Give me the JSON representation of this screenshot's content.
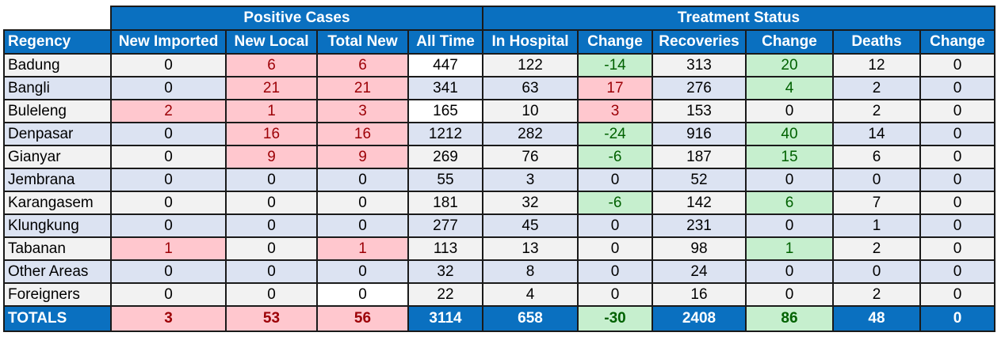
{
  "groups": {
    "positive": "Positive Cases",
    "treatment": "Treatment Status"
  },
  "columns": [
    "Regency",
    "New Imported",
    "New Local",
    "Total New",
    "All Time",
    "In Hospital",
    "Change",
    "Recoveries",
    "Change",
    "Deaths",
    "Change"
  ],
  "rows": [
    [
      "Badung",
      "0",
      "6",
      "6",
      "447",
      "122",
      "-14",
      "313",
      "20",
      "12",
      "0"
    ],
    [
      "Bangli",
      "0",
      "21",
      "21",
      "341",
      "63",
      "17",
      "276",
      "4",
      "2",
      "0"
    ],
    [
      "Buleleng",
      "2",
      "1",
      "3",
      "165",
      "10",
      "3",
      "153",
      "0",
      "2",
      "0"
    ],
    [
      "Denpasar",
      "0",
      "16",
      "16",
      "1212",
      "282",
      "-24",
      "916",
      "40",
      "14",
      "0"
    ],
    [
      "Gianyar",
      "0",
      "9",
      "9",
      "269",
      "76",
      "-6",
      "187",
      "15",
      "6",
      "0"
    ],
    [
      "Jembrana",
      "0",
      "0",
      "0",
      "55",
      "3",
      "0",
      "52",
      "0",
      "0",
      "0"
    ],
    [
      "Karangasem",
      "0",
      "0",
      "0",
      "181",
      "32",
      "-6",
      "142",
      "6",
      "7",
      "0"
    ],
    [
      "Klungkung",
      "0",
      "0",
      "0",
      "277",
      "45",
      "0",
      "231",
      "0",
      "1",
      "0"
    ],
    [
      "Tabanan",
      "1",
      "0",
      "1",
      "113",
      "13",
      "0",
      "98",
      "1",
      "2",
      "0"
    ],
    [
      "Other Areas",
      "0",
      "0",
      "0",
      "32",
      "8",
      "0",
      "24",
      "0",
      "0",
      "0"
    ],
    [
      "Foreigners",
      "0",
      "0",
      "0",
      "22",
      "4",
      "0",
      "16",
      "0",
      "2",
      "0"
    ]
  ],
  "totals": [
    "TOTALS",
    "3",
    "53",
    "56",
    "3114",
    "658",
    "-30",
    "2408",
    "86",
    "48",
    "0"
  ],
  "cell_styles": {
    "0": [
      "",
      "",
      "red",
      "red",
      "white",
      "",
      "green",
      "",
      "green",
      "",
      ""
    ],
    "1": [
      "",
      "",
      "red",
      "red",
      "",
      "",
      "red",
      "",
      "green",
      "",
      ""
    ],
    "2": [
      "",
      "red",
      "red",
      "red",
      "white",
      "",
      "red",
      "",
      "",
      "",
      ""
    ],
    "3": [
      "",
      "",
      "red",
      "red",
      "",
      "",
      "green",
      "",
      "green",
      "",
      ""
    ],
    "4": [
      "",
      "",
      "red",
      "red",
      "",
      "",
      "green",
      "",
      "green",
      "",
      ""
    ],
    "5": [
      "",
      "",
      "",
      "",
      "",
      "",
      "",
      "",
      "",
      "",
      ""
    ],
    "6": [
      "",
      "",
      "",
      "",
      "",
      "",
      "green",
      "",
      "green",
      "",
      ""
    ],
    "7": [
      "",
      "",
      "",
      "",
      "",
      "",
      "",
      "",
      "",
      "",
      ""
    ],
    "8": [
      "",
      "red",
      "",
      "red",
      "",
      "",
      "",
      "",
      "green",
      "",
      ""
    ],
    "9": [
      "",
      "",
      "",
      "",
      "",
      "",
      "",
      "",
      "",
      "",
      ""
    ],
    "10": [
      "",
      "",
      "",
      "white",
      "",
      "",
      "",
      "",
      "",
      "",
      ""
    ],
    "totals": [
      "",
      "red",
      "red",
      "red",
      "",
      "",
      "green",
      "",
      "green",
      "",
      ""
    ]
  },
  "colors": {
    "header_blue": "#0a70c0",
    "row_odd": "#f2f2f2",
    "row_even": "#dce3f2",
    "increase_fill": "#ffc7ce",
    "increase_text": "#9c0006",
    "decrease_fill": "#c6efce",
    "decrease_text": "#006100"
  }
}
